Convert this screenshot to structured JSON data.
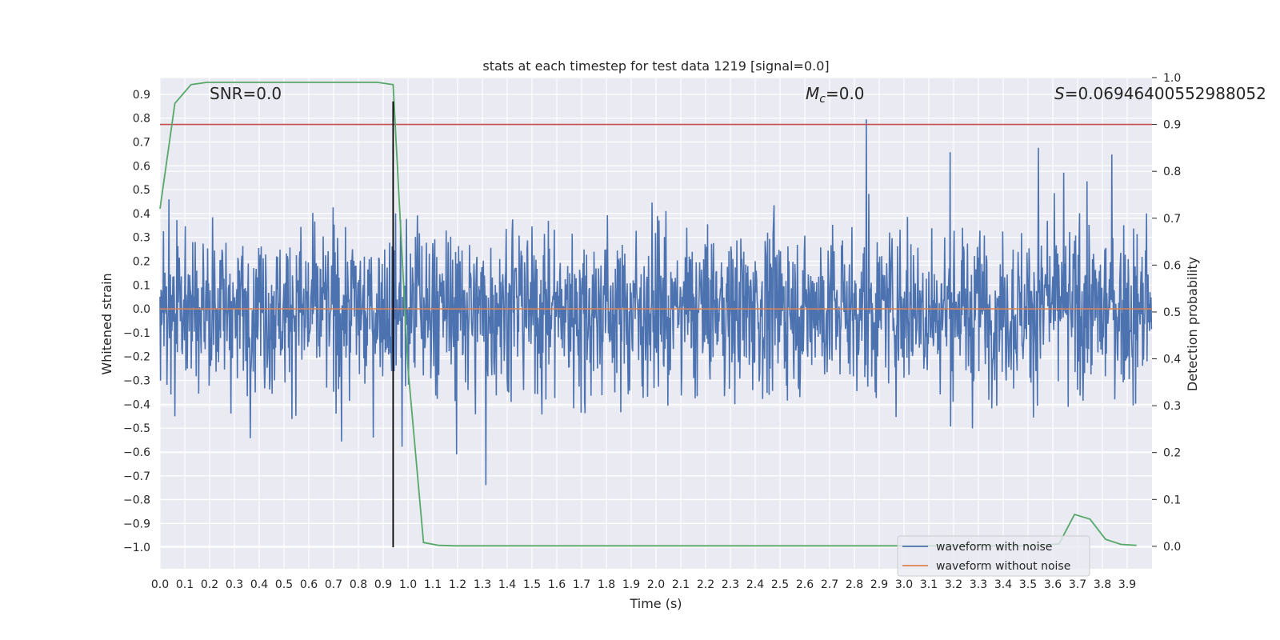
{
  "chart_data": {
    "type": "line",
    "title": "stats at each timestep for test data 1219 [signal=0.0]",
    "xlabel": "Time (s)",
    "ylabel": "Whitened strain",
    "y2label": "Detection probability",
    "xlim": [
      0.0,
      4.0
    ],
    "ylim": [
      -1.09,
      0.97
    ],
    "y2lim": [
      -0.048,
      1.0
    ],
    "xticks": [
      "0.0",
      "0.1",
      "0.2",
      "0.3",
      "0.4",
      "0.5",
      "0.6",
      "0.7",
      "0.8",
      "0.9",
      "1.0",
      "1.1",
      "1.2",
      "1.3",
      "1.4",
      "1.5",
      "1.6",
      "1.7",
      "1.8",
      "1.9",
      "2.0",
      "2.1",
      "2.2",
      "2.3",
      "2.4",
      "2.5",
      "2.6",
      "2.7",
      "2.8",
      "2.9",
      "3.0",
      "3.1",
      "3.2",
      "3.3",
      "3.4",
      "3.5",
      "3.6",
      "3.7",
      "3.8",
      "3.9"
    ],
    "yticks": [
      "0.9",
      "0.8",
      "0.7",
      "0.6",
      "0.5",
      "0.4",
      "0.3",
      "0.2",
      "0.1",
      "0.0",
      "−0.1",
      "−0.2",
      "−0.3",
      "−0.4",
      "−0.5",
      "−0.6",
      "−0.7",
      "−0.8",
      "−0.9",
      "−1.0"
    ],
    "y2ticks": [
      "1.0",
      "0.9",
      "0.8",
      "0.7",
      "0.6",
      "0.5",
      "0.4",
      "0.3",
      "0.2",
      "0.1",
      "0.0"
    ],
    "annotations": {
      "snr": "SNR=0.0",
      "mc_symbol": "M",
      "mc_sub": "c",
      "mc_value": "=0.0",
      "s_symbol": "S",
      "s_value": "=0.06946400552988052"
    },
    "threshold": {
      "value": 0.9,
      "axis": "y2",
      "color": "#c44e52"
    },
    "marker_line": {
      "x": 0.94,
      "y_from": -1.0,
      "y_to": 0.87,
      "color": "#000000"
    },
    "series": [
      {
        "name": "waveform with noise",
        "color": "#4c72b0",
        "axis": "y",
        "description": "noisy whitened strain, roughly +/-0.5 with spikes to about +0.87 and -1.0",
        "dt": 0.002,
        "duration": 4.0,
        "envelope_min": -1.0,
        "envelope_max": 0.87
      },
      {
        "name": "waveform without noise",
        "color": "#dd8452",
        "axis": "y",
        "x": [
          0.0,
          4.0
        ],
        "values": [
          0.0,
          0.0
        ]
      },
      {
        "name": "detection probability",
        "color": "#55a868",
        "axis": "y2",
        "x": [
          0.0,
          0.06,
          0.125,
          0.19,
          0.25,
          0.3125,
          0.375,
          0.4375,
          0.5,
          0.5625,
          0.625,
          0.6875,
          0.75,
          0.8125,
          0.875,
          0.94,
          1.0,
          1.0625,
          1.125,
          1.1875,
          1.25,
          1.5,
          2.0,
          2.5,
          3.0,
          3.25,
          3.5,
          3.625,
          3.6875,
          3.75,
          3.8125,
          3.875,
          3.9375
        ],
        "values": [
          0.72,
          0.945,
          0.985,
          0.99,
          0.99,
          0.99,
          0.99,
          0.99,
          0.99,
          0.99,
          0.99,
          0.99,
          0.99,
          0.99,
          0.99,
          0.985,
          0.38,
          0.008,
          0.002,
          0.001,
          0.001,
          0.001,
          0.001,
          0.001,
          0.001,
          0.001,
          0.001,
          0.005,
          0.068,
          0.058,
          0.015,
          0.004,
          0.002
        ]
      }
    ],
    "legend": {
      "placement": "lower-right",
      "entries": [
        {
          "label": "waveform with noise",
          "color": "#4c72b0"
        },
        {
          "label": "waveform without noise",
          "color": "#dd8452"
        }
      ]
    },
    "style": {
      "background": "#eaeaf2",
      "grid": true,
      "grid_color": "#ffffff"
    }
  }
}
